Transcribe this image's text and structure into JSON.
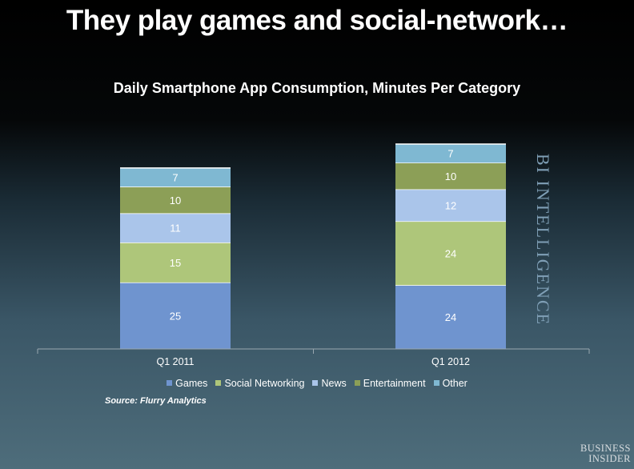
{
  "headline": "They play games and social-network…",
  "chart_data": {
    "type": "bar",
    "stacked": true,
    "title": "Daily Smartphone App Consumption, Minutes Per Category",
    "categories": [
      "Q1 2011",
      "Q1 2012"
    ],
    "series": [
      {
        "name": "Games",
        "values": [
          25,
          24
        ],
        "color": "#6f94cf"
      },
      {
        "name": "Social Networking",
        "values": [
          15,
          24
        ],
        "color": "#aec67a"
      },
      {
        "name": "News",
        "values": [
          11,
          12
        ],
        "color": "#aac5ea"
      },
      {
        "name": "Entertainment",
        "values": [
          10,
          10
        ],
        "color": "#8c9f57"
      },
      {
        "name": "Other",
        "values": [
          7,
          7
        ],
        "color": "#7fb8d2"
      }
    ],
    "ylim": [
      0,
      77
    ],
    "legend_position": "bottom",
    "grid": false,
    "xlabel": "",
    "ylabel": ""
  },
  "source": "Source: Flurry Analytics",
  "watermark": "BI INTELLIGENCE",
  "logo": {
    "line1": "BUSINESS",
    "line2": "INSIDER"
  }
}
